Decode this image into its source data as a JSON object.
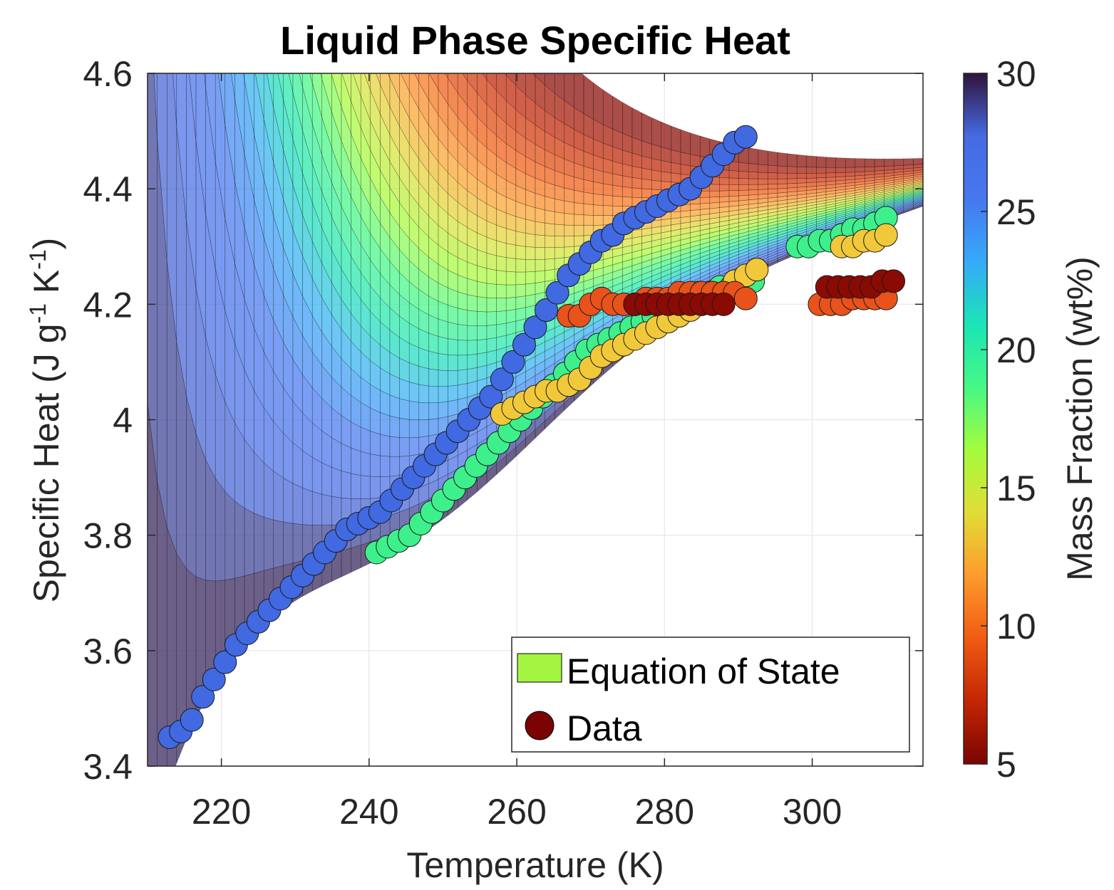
{
  "chart_data": {
    "type": "scatter",
    "title": "Liquid Phase Specific Heat",
    "xlabel": "Temperature (K)",
    "ylabel": "Specific Heat  (J g-1 K-1)",
    "xlim": [
      210,
      315
    ],
    "ylim": [
      3.4,
      4.6
    ],
    "xticks": [
      220,
      240,
      260,
      280,
      300
    ],
    "yticks": [
      3.4,
      3.6,
      3.8,
      4.0,
      4.2,
      4.4,
      4.6
    ],
    "ytick_labels": [
      "3.4",
      "3.6",
      "3.8",
      "4",
      "4.2",
      "4.4",
      "4.6"
    ],
    "grid": true,
    "legend": {
      "position": "bottom-right",
      "entries": [
        {
          "label": "Equation of State",
          "marker": "patch",
          "color": "#a4f542"
        },
        {
          "label": "Data",
          "marker": "circle",
          "color": "#7a0403"
        }
      ]
    },
    "colorbar": {
      "label": "Mass Fraction (wt%)",
      "range": [
        5,
        30
      ],
      "ticks": [
        5,
        10,
        15,
        20,
        25,
        30
      ],
      "colormap": "turbo (reversed)",
      "colors": [
        "#7a0403",
        "#c42503",
        "#f05b12",
        "#fe9b2d",
        "#e1dd37",
        "#a4fc3c",
        "#46f884",
        "#1ae4b6",
        "#36aaf9",
        "#4777ef",
        "#466be3",
        "#30123b"
      ]
    },
    "surface": {
      "name": "Equation of State",
      "temperature_range": [
        210,
        315
      ],
      "mass_fraction_range": [
        5,
        30
      ]
    },
    "series": [
      {
        "mass_fraction": 27,
        "color": "#4169e1",
        "x": [
          213,
          214.5,
          216,
          217.5,
          219,
          220.5,
          222,
          223.5,
          225,
          226.5,
          228,
          229.5,
          231,
          232.5,
          234,
          235.5,
          237,
          238.5,
          240,
          241.5,
          243,
          244.5,
          246,
          247.5,
          249,
          250.5,
          252,
          253.5,
          255,
          256.5,
          258,
          259.5,
          261,
          262.5,
          264,
          265.5,
          267,
          268.5,
          270,
          271.5,
          273,
          274.5,
          276,
          277.5,
          279,
          280.5,
          282,
          283.5,
          285,
          286.5,
          288,
          289.5,
          291
        ],
        "y": [
          3.45,
          3.46,
          3.48,
          3.52,
          3.55,
          3.58,
          3.61,
          3.63,
          3.65,
          3.67,
          3.69,
          3.71,
          3.73,
          3.75,
          3.77,
          3.79,
          3.81,
          3.82,
          3.83,
          3.84,
          3.86,
          3.88,
          3.9,
          3.92,
          3.94,
          3.96,
          3.98,
          4.0,
          4.02,
          4.04,
          4.07,
          4.1,
          4.13,
          4.16,
          4.19,
          4.22,
          4.25,
          4.27,
          4.29,
          4.31,
          4.32,
          4.34,
          4.35,
          4.36,
          4.37,
          4.38,
          4.39,
          4.4,
          4.42,
          4.44,
          4.46,
          4.48,
          4.49
        ]
      },
      {
        "mass_fraction": 21,
        "color": "#3ef08c",
        "x": [
          241,
          242.5,
          244,
          245.5,
          247,
          248.5,
          250,
          251.5,
          253,
          254.5,
          256,
          257.5,
          259,
          260.5,
          262,
          263.5,
          265,
          266.5,
          268,
          269.5,
          271,
          272.5,
          274,
          275.5,
          277,
          278.5,
          280,
          281.5,
          283,
          284.5,
          286,
          287.5,
          289,
          290.5,
          292,
          298,
          299.5,
          301,
          302.5,
          304,
          305.5,
          307,
          308.5,
          310
        ],
        "y": [
          3.77,
          3.78,
          3.79,
          3.8,
          3.82,
          3.84,
          3.86,
          3.88,
          3.9,
          3.92,
          3.94,
          3.96,
          3.98,
          4.0,
          4.02,
          4.04,
          4.06,
          4.08,
          4.1,
          4.12,
          4.13,
          4.14,
          4.15,
          4.16,
          4.17,
          4.18,
          4.19,
          4.2,
          4.21,
          4.22,
          4.22,
          4.23,
          4.23,
          4.24,
          4.24,
          4.3,
          4.3,
          4.31,
          4.31,
          4.32,
          4.33,
          4.33,
          4.34,
          4.35
        ]
      },
      {
        "mass_fraction": 14,
        "color": "#f0c83a",
        "x": [
          258,
          259.5,
          261,
          262.5,
          264,
          265.5,
          267,
          268.5,
          270,
          271.5,
          273,
          274.5,
          276,
          277.5,
          279,
          280.5,
          282,
          283.5,
          285,
          286.5,
          288,
          289.5,
          291,
          292.5,
          304,
          305.5,
          307,
          308.5,
          310
        ],
        "y": [
          4.01,
          4.02,
          4.03,
          4.04,
          4.05,
          4.05,
          4.06,
          4.07,
          4.09,
          4.11,
          4.12,
          4.13,
          4.14,
          4.15,
          4.16,
          4.17,
          4.18,
          4.19,
          4.2,
          4.21,
          4.22,
          4.24,
          4.25,
          4.26,
          4.3,
          4.3,
          4.31,
          4.31,
          4.32
        ]
      },
      {
        "mass_fraction": 9,
        "color": "#e9521a",
        "x": [
          267,
          268.5,
          270,
          271.5,
          273,
          274.5,
          276,
          277.5,
          279,
          280.5,
          282,
          283.5,
          285,
          286.5,
          288,
          289.5,
          291,
          301,
          302.5,
          304,
          305.5,
          307,
          308.5,
          310
        ],
        "y": [
          4.18,
          4.18,
          4.2,
          4.21,
          4.2,
          4.2,
          4.2,
          4.21,
          4.21,
          4.21,
          4.22,
          4.22,
          4.22,
          4.22,
          4.22,
          4.22,
          4.21,
          4.2,
          4.2,
          4.2,
          4.21,
          4.21,
          4.21,
          4.21
        ]
      },
      {
        "mass_fraction": 6,
        "color": "#8a0a04",
        "x": [
          276,
          277.5,
          279,
          280.5,
          282,
          283.5,
          285,
          286.5,
          288,
          302,
          303.5,
          305,
          306.5,
          308,
          309.5,
          311
        ],
        "y": [
          4.2,
          4.2,
          4.2,
          4.2,
          4.2,
          4.2,
          4.2,
          4.2,
          4.2,
          4.23,
          4.23,
          4.23,
          4.23,
          4.23,
          4.24,
          4.24
        ]
      }
    ]
  }
}
